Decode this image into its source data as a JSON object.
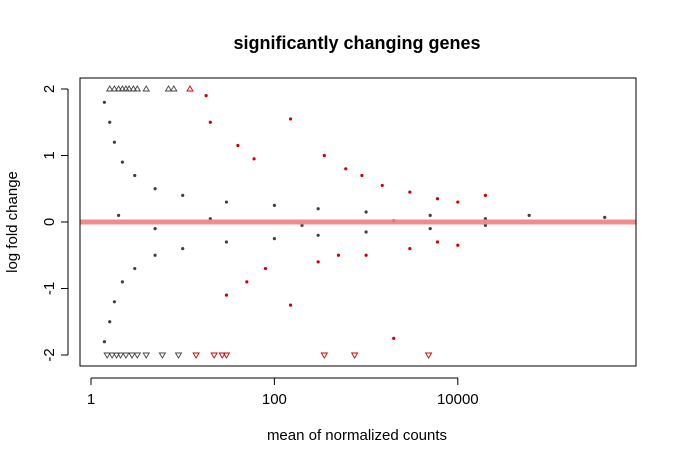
{
  "chart_data": {
    "type": "scatter",
    "title": "significantly changing genes",
    "xlabel": "mean of normalized counts",
    "ylabel": "log fold change",
    "x_scale": "log",
    "x_ticks": [
      1,
      100,
      10000
    ],
    "x_tick_labels": [
      "1",
      "100",
      "10000"
    ],
    "xlim": [
      0.6,
      1000000
    ],
    "y_ticks": [
      -2,
      -1,
      0,
      1,
      2
    ],
    "y_tick_labels": [
      "-2",
      "-1",
      "0",
      "1",
      "2"
    ],
    "ylim": [
      -2.1,
      2.1
    ],
    "grid": false,
    "legend": "none",
    "reference_line": {
      "y": 0,
      "color": "#f08080"
    },
    "colors": {
      "not_significant": "#404040",
      "significant": "#cc0000",
      "frame": "#000000"
    },
    "series": [
      {
        "points": [
          {
            "x": 1.6,
            "y": 2
          },
          {
            "x": 1.8,
            "y": 2
          },
          {
            "x": 2,
            "y": 2
          },
          {
            "x": 2.2,
            "y": 2
          },
          {
            "x": 2.4,
            "y": 2
          },
          {
            "x": 2.6,
            "y": 2
          },
          {
            "x": 2.9,
            "y": 2
          },
          {
            "x": 3.2,
            "y": 2
          },
          {
            "x": 4,
            "y": 2
          },
          {
            "x": 7,
            "y": 2
          },
          {
            "x": 8,
            "y": 2
          },
          {
            "x": 1.5,
            "y": -2
          },
          {
            "x": 1.7,
            "y": -2
          },
          {
            "x": 1.9,
            "y": -2
          },
          {
            "x": 2.1,
            "y": -2
          },
          {
            "x": 2.4,
            "y": -2
          },
          {
            "x": 2.8,
            "y": -2
          },
          {
            "x": 3.2,
            "y": -2
          },
          {
            "x": 4,
            "y": -2
          },
          {
            "x": 6,
            "y": -2
          },
          {
            "x": 9,
            "y": -2
          },
          {
            "x": 1.4,
            "y": 1.8
          },
          {
            "x": 1.6,
            "y": 1.5
          },
          {
            "x": 1.8,
            "y": 1.2
          },
          {
            "x": 2.2,
            "y": 0.9
          },
          {
            "x": 3,
            "y": 0.7
          },
          {
            "x": 5,
            "y": 0.5
          },
          {
            "x": 10,
            "y": 0.4
          },
          {
            "x": 30,
            "y": 0.3
          },
          {
            "x": 100,
            "y": 0.25
          },
          {
            "x": 300,
            "y": 0.2
          },
          {
            "x": 1000,
            "y": 0.15
          },
          {
            "x": 5000,
            "y": 0.1
          },
          {
            "x": 20000,
            "y": 0.05
          },
          {
            "x": 1.4,
            "y": -1.8
          },
          {
            "x": 1.6,
            "y": -1.5
          },
          {
            "x": 1.8,
            "y": -1.2
          },
          {
            "x": 2.2,
            "y": -0.9
          },
          {
            "x": 3,
            "y": -0.7
          },
          {
            "x": 5,
            "y": -0.5
          },
          {
            "x": 10,
            "y": -0.4
          },
          {
            "x": 30,
            "y": -0.3
          },
          {
            "x": 100,
            "y": -0.25
          },
          {
            "x": 300,
            "y": -0.2
          },
          {
            "x": 1000,
            "y": -0.15
          },
          {
            "x": 5000,
            "y": -0.1
          },
          {
            "x": 20000,
            "y": -0.05
          },
          {
            "x": 2,
            "y": 0.1
          },
          {
            "x": 5,
            "y": -0.1
          },
          {
            "x": 20,
            "y": 0.05
          },
          {
            "x": 200,
            "y": -0.05
          },
          {
            "x": 2000,
            "y": 0.02
          },
          {
            "x": 60000,
            "y": 0.1
          },
          {
            "x": 400000,
            "y": 0.07
          }
        ]
      },
      {
        "points": [
          {
            "x": 12,
            "y": 2
          },
          {
            "x": 14,
            "y": -2
          },
          {
            "x": 22,
            "y": -2
          },
          {
            "x": 27,
            "y": -2
          },
          {
            "x": 30,
            "y": -2
          },
          {
            "x": 350,
            "y": -2
          },
          {
            "x": 750,
            "y": -2
          },
          {
            "x": 4800,
            "y": -2
          },
          {
            "x": 18,
            "y": 1.9
          },
          {
            "x": 20,
            "y": 1.5
          },
          {
            "x": 40,
            "y": 1.15
          },
          {
            "x": 60,
            "y": 0.95
          },
          {
            "x": 150,
            "y": 1.55
          },
          {
            "x": 350,
            "y": 1
          },
          {
            "x": 600,
            "y": 0.8
          },
          {
            "x": 900,
            "y": 0.7
          },
          {
            "x": 1500,
            "y": 0.55
          },
          {
            "x": 3000,
            "y": 0.45
          },
          {
            "x": 6000,
            "y": 0.35
          },
          {
            "x": 10000,
            "y": 0.3
          },
          {
            "x": 20000,
            "y": 0.4
          },
          {
            "x": 30,
            "y": -1.1
          },
          {
            "x": 50,
            "y": -0.9
          },
          {
            "x": 80,
            "y": -0.7
          },
          {
            "x": 150,
            "y": -1.25
          },
          {
            "x": 300,
            "y": -0.6
          },
          {
            "x": 500,
            "y": -0.5
          },
          {
            "x": 1000,
            "y": -0.5
          },
          {
            "x": 2000,
            "y": -1.75
          },
          {
            "x": 3000,
            "y": -0.4
          },
          {
            "x": 6000,
            "y": -0.3
          },
          {
            "x": 10000,
            "y": -0.35
          }
        ]
      }
    ]
  }
}
